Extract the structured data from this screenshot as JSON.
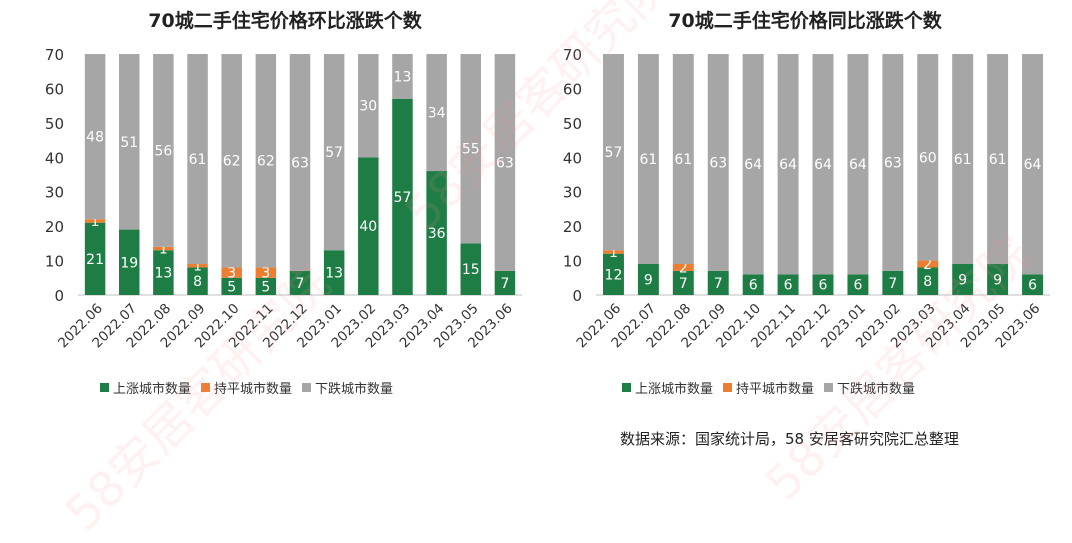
{
  "charts": [
    {
      "title": "70城二手住宅价格环比涨跌个数"
    },
    {
      "title": "70城二手住宅价格同比涨跌个数"
    }
  ],
  "legend": {
    "up": "上涨城市数量",
    "flat": "持平城市数量",
    "down": "下跌城市数量"
  },
  "source": "数据来源：国家统计局，58 安居客研究院汇总整理",
  "watermark": "58安居客研究院",
  "colors": {
    "up": "#1e7d45",
    "flat": "#ed7d31",
    "down": "#a6a6a6"
  },
  "chart_data": [
    {
      "type": "bar",
      "stacked": true,
      "title": "70城二手住宅价格环比涨跌个数",
      "categories": [
        "2022.06",
        "2022.07",
        "2022.08",
        "2022.09",
        "2022.10",
        "2022.11",
        "2022.12",
        "2023.01",
        "2023.02",
        "2023.03",
        "2023.04",
        "2023.05",
        "2023.06"
      ],
      "series": [
        {
          "name": "上涨城市数量",
          "values": [
            21,
            19,
            13,
            8,
            5,
            5,
            7,
            13,
            40,
            57,
            36,
            15,
            7
          ]
        },
        {
          "name": "持平城市数量",
          "values": [
            1,
            0,
            1,
            1,
            3,
            3,
            0,
            0,
            0,
            0,
            0,
            0,
            0
          ]
        },
        {
          "name": "下跌城市数量",
          "values": [
            48,
            51,
            56,
            61,
            62,
            62,
            63,
            57,
            30,
            13,
            34,
            55,
            63
          ]
        }
      ],
      "ylim": [
        0,
        70
      ],
      "yticks": [
        0,
        10,
        20,
        30,
        40,
        50,
        60,
        70
      ],
      "grid": false,
      "legend_position": "bottom"
    },
    {
      "type": "bar",
      "stacked": true,
      "title": "70城二手住宅价格同比涨跌个数",
      "categories": [
        "2022.06",
        "2022.07",
        "2022.08",
        "2022.09",
        "2022.10",
        "2022.11",
        "2022.12",
        "2023.01",
        "2023.02",
        "2023.03",
        "2023.04",
        "2023.05",
        "2023.06"
      ],
      "series": [
        {
          "name": "上涨城市数量",
          "values": [
            12,
            9,
            7,
            7,
            6,
            6,
            6,
            6,
            7,
            8,
            9,
            9,
            6
          ]
        },
        {
          "name": "持平城市数量",
          "values": [
            1,
            0,
            2,
            0,
            0,
            0,
            0,
            0,
            0,
            2,
            0,
            0,
            0
          ]
        },
        {
          "name": "下跌城市数量",
          "values": [
            57,
            61,
            61,
            63,
            64,
            64,
            64,
            64,
            63,
            60,
            61,
            61,
            64
          ]
        }
      ],
      "ylim": [
        0,
        70
      ],
      "yticks": [
        0,
        10,
        20,
        30,
        40,
        50,
        60,
        70
      ],
      "grid": false,
      "legend_position": "bottom"
    }
  ]
}
